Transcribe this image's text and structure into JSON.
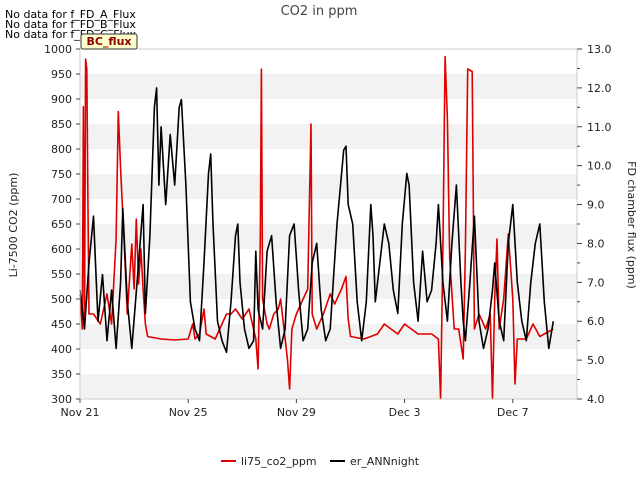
{
  "chart_data": {
    "type": "line",
    "title": "CO2 in ppm",
    "ylabel": "Li-7500 CO2 (ppm)",
    "y2label": "FD chamber flux (ppm)",
    "xlabel": "",
    "xlim": [
      "2021-11-21",
      "2021-12-09 09:00"
    ],
    "ylim": [
      300,
      1000
    ],
    "y2lim": [
      4.0,
      13.0
    ],
    "yticks": [
      "300",
      "350",
      "400",
      "450",
      "500",
      "550",
      "600",
      "650",
      "700",
      "750",
      "800",
      "850",
      "900",
      "950",
      "1000"
    ],
    "y2ticks": [
      "4.0",
      "5.0",
      "6.0",
      "7.0",
      "8.0",
      "9.0",
      "10.0",
      "11.0",
      "12.0",
      "13.0"
    ],
    "xticks": [
      {
        "label": "Nov 21",
        "date": "2021-11-21"
      },
      {
        "label": "Nov 25",
        "date": "2021-11-25"
      },
      {
        "label": "Nov 29",
        "date": "2021-11-29"
      },
      {
        "label": "Dec 3",
        "date": "2021-12-03"
      },
      {
        "label": "Dec 7",
        "date": "2021-12-07"
      }
    ],
    "grid": "horizontal bands",
    "legend_position": "bottom",
    "notes": [
      "No data for f_FD_A_Flux",
      "No data for f_FD_B_Flux",
      "No data for f_FD_C_Flux"
    ],
    "badge": "BC_flux",
    "series": [
      {
        "name": "li75_co2_ppm",
        "axis": "left",
        "color": "#dd0000",
        "points": [
          [
            "2021-11-21 00:00",
            510
          ],
          [
            "2021-11-21 02:00",
            440
          ],
          [
            "2021-11-21 03:00",
            885
          ],
          [
            "2021-11-21 04:00",
            450
          ],
          [
            "2021-11-21 05:00",
            980
          ],
          [
            "2021-11-21 06:00",
            960
          ],
          [
            "2021-11-21 07:00",
            700
          ],
          [
            "2021-11-21 08:00",
            470
          ],
          [
            "2021-11-21 12:00",
            470
          ],
          [
            "2021-11-21 18:00",
            450
          ],
          [
            "2021-11-22 00:00",
            510
          ],
          [
            "2021-11-22 04:00",
            450
          ],
          [
            "2021-11-22 08:00",
            620
          ],
          [
            "2021-11-22 10:00",
            875
          ],
          [
            "2021-11-22 12:00",
            760
          ],
          [
            "2021-11-22 15:00",
            620
          ],
          [
            "2021-11-22 18:00",
            470
          ],
          [
            "2021-11-22 22:00",
            610
          ],
          [
            "2021-11-23 00:00",
            520
          ],
          [
            "2021-11-23 02:00",
            660
          ],
          [
            "2021-11-23 04:00",
            530
          ],
          [
            "2021-11-23 06:00",
            600
          ],
          [
            "2021-11-23 08:00",
            520
          ],
          [
            "2021-11-23 10:00",
            450
          ],
          [
            "2021-11-23 12:00",
            425
          ],
          [
            "2021-11-24 00:00",
            420
          ],
          [
            "2021-11-24 12:00",
            418
          ],
          [
            "2021-11-25 00:00",
            420
          ],
          [
            "2021-11-25 04:00",
            450
          ],
          [
            "2021-11-25 06:00",
            420
          ],
          [
            "2021-11-25 10:00",
            430
          ],
          [
            "2021-11-25 14:00",
            480
          ],
          [
            "2021-11-25 16:00",
            430
          ],
          [
            "2021-11-26 00:00",
            420
          ],
          [
            "2021-11-26 06:00",
            450
          ],
          [
            "2021-11-26 10:00",
            470
          ],
          [
            "2021-11-26 14:00",
            470
          ],
          [
            "2021-11-26 18:00",
            480
          ],
          [
            "2021-11-27 00:00",
            460
          ],
          [
            "2021-11-27 06:00",
            480
          ],
          [
            "2021-11-27 12:00",
            420
          ],
          [
            "2021-11-27 14:00",
            360
          ],
          [
            "2021-11-27 16:00",
            620
          ],
          [
            "2021-11-27 17:00",
            960
          ],
          [
            "2021-11-27 18:00",
            500
          ],
          [
            "2021-11-27 22:00",
            450
          ],
          [
            "2021-11-28 00:00",
            440
          ],
          [
            "2021-11-28 04:00",
            470
          ],
          [
            "2021-11-28 08:00",
            480
          ],
          [
            "2021-11-28 10:00",
            500
          ],
          [
            "2021-11-28 12:00",
            460
          ],
          [
            "2021-11-28 16:00",
            380
          ],
          [
            "2021-11-28 18:00",
            320
          ],
          [
            "2021-11-28 20:00",
            440
          ],
          [
            "2021-11-29 00:00",
            470
          ],
          [
            "2021-11-29 06:00",
            500
          ],
          [
            "2021-11-29 10:00",
            520
          ],
          [
            "2021-11-29 13:00",
            850
          ],
          [
            "2021-11-29 14:00",
            470
          ],
          [
            "2021-11-29 18:00",
            440
          ],
          [
            "2021-11-30 00:00",
            470
          ],
          [
            "2021-11-30 06:00",
            510
          ],
          [
            "2021-11-30 10:00",
            490
          ],
          [
            "2021-11-30 16:00",
            520
          ],
          [
            "2021-11-30 20:00",
            545
          ],
          [
            "2021-11-30 22:00",
            460
          ],
          [
            "2021-12-01 00:00",
            425
          ],
          [
            "2021-12-01 12:00",
            420
          ],
          [
            "2021-12-02 00:00",
            430
          ],
          [
            "2021-12-02 06:00",
            450
          ],
          [
            "2021-12-02 12:00",
            440
          ],
          [
            "2021-12-02 18:00",
            430
          ],
          [
            "2021-12-03 00:00",
            450
          ],
          [
            "2021-12-03 06:00",
            440
          ],
          [
            "2021-12-03 12:00",
            430
          ],
          [
            "2021-12-04 00:00",
            430
          ],
          [
            "2021-12-04 06:00",
            420
          ],
          [
            "2021-12-04 08:00",
            300
          ],
          [
            "2021-12-04 10:00",
            600
          ],
          [
            "2021-12-04 12:00",
            985
          ],
          [
            "2021-12-04 14:00",
            860
          ],
          [
            "2021-12-04 16:00",
            580
          ],
          [
            "2021-12-04 20:00",
            440
          ],
          [
            "2021-12-05 00:00",
            440
          ],
          [
            "2021-12-05 04:00",
            380
          ],
          [
            "2021-12-05 06:00",
            600
          ],
          [
            "2021-12-05 08:00",
            960
          ],
          [
            "2021-12-05 12:00",
            955
          ],
          [
            "2021-12-05 14:00",
            440
          ],
          [
            "2021-12-05 18:00",
            470
          ],
          [
            "2021-12-06 00:00",
            440
          ],
          [
            "2021-12-06 04:00",
            470
          ],
          [
            "2021-12-06 06:00",
            300
          ],
          [
            "2021-12-06 08:00",
            500
          ],
          [
            "2021-12-06 10:00",
            620
          ],
          [
            "2021-12-06 12:00",
            440
          ],
          [
            "2021-12-06 16:00",
            500
          ],
          [
            "2021-12-06 20:00",
            630
          ],
          [
            "2021-12-07 00:00",
            500
          ],
          [
            "2021-12-07 02:00",
            330
          ],
          [
            "2021-12-07 04:00",
            420
          ],
          [
            "2021-12-07 12:00",
            420
          ],
          [
            "2021-12-07 18:00",
            450
          ],
          [
            "2021-12-08 00:00",
            425
          ],
          [
            "2021-12-08 12:00",
            440
          ]
        ]
      },
      {
        "name": "er_ANNnight",
        "axis": "right",
        "color": "#000000",
        "points": [
          [
            "2021-11-21 00:00",
            6.8
          ],
          [
            "2021-11-21 04:00",
            5.8
          ],
          [
            "2021-11-21 08:00",
            7.5
          ],
          [
            "2021-11-21 12:00",
            8.7
          ],
          [
            "2021-11-21 16:00",
            6.0
          ],
          [
            "2021-11-21 20:00",
            7.2
          ],
          [
            "2021-11-22 00:00",
            5.5
          ],
          [
            "2021-11-22 04:00",
            6.8
          ],
          [
            "2021-11-22 08:00",
            5.3
          ],
          [
            "2021-11-22 12:00",
            7.0
          ],
          [
            "2021-11-22 14:00",
            8.9
          ],
          [
            "2021-11-22 18:00",
            6.5
          ],
          [
            "2021-11-22 22:00",
            5.3
          ],
          [
            "2021-11-23 04:00",
            7.5
          ],
          [
            "2021-11-23 08:00",
            9.0
          ],
          [
            "2021-11-23 10:00",
            6.2
          ],
          [
            "2021-11-23 14:00",
            8.2
          ],
          [
            "2021-11-23 18:00",
            11.5
          ],
          [
            "2021-11-23 20:00",
            12.0
          ],
          [
            "2021-11-23 22:00",
            9.5
          ],
          [
            "2021-11-24 00:00",
            11.0
          ],
          [
            "2021-11-24 04:00",
            9.0
          ],
          [
            "2021-11-24 08:00",
            10.8
          ],
          [
            "2021-11-24 12:00",
            9.5
          ],
          [
            "2021-11-24 16:00",
            11.5
          ],
          [
            "2021-11-24 18:00",
            11.7
          ],
          [
            "2021-11-24 22:00",
            9.5
          ],
          [
            "2021-11-25 02:00",
            6.5
          ],
          [
            "2021-11-25 06:00",
            5.8
          ],
          [
            "2021-11-25 10:00",
            5.5
          ],
          [
            "2021-11-25 14:00",
            7.5
          ],
          [
            "2021-11-25 18:00",
            9.8
          ],
          [
            "2021-11-25 20:00",
            10.3
          ],
          [
            "2021-11-25 22:00",
            8.5
          ],
          [
            "2021-11-26 02:00",
            6.0
          ],
          [
            "2021-11-26 06:00",
            5.5
          ],
          [
            "2021-11-26 10:00",
            5.2
          ],
          [
            "2021-11-26 14:00",
            6.5
          ],
          [
            "2021-11-26 18:00",
            8.2
          ],
          [
            "2021-11-26 20:00",
            8.5
          ],
          [
            "2021-11-26 22:00",
            7.0
          ],
          [
            "2021-11-27 02:00",
            5.8
          ],
          [
            "2021-11-27 06:00",
            5.3
          ],
          [
            "2021-11-27 10:00",
            5.5
          ],
          [
            "2021-11-27 12:00",
            7.8
          ],
          [
            "2021-11-27 14:00",
            6.3
          ],
          [
            "2021-11-27 18:00",
            5.8
          ],
          [
            "2021-11-27 22:00",
            7.8
          ],
          [
            "2021-11-28 02:00",
            8.2
          ],
          [
            "2021-11-28 06:00",
            6.5
          ],
          [
            "2021-11-28 10:00",
            5.3
          ],
          [
            "2021-11-28 14:00",
            5.8
          ],
          [
            "2021-11-28 18:00",
            8.2
          ],
          [
            "2021-11-28 22:00",
            8.5
          ],
          [
            "2021-11-29 02:00",
            6.8
          ],
          [
            "2021-11-29 06:00",
            5.5
          ],
          [
            "2021-11-29 10:00",
            5.8
          ],
          [
            "2021-11-29 14:00",
            7.5
          ],
          [
            "2021-11-29 18:00",
            8.0
          ],
          [
            "2021-11-29 22:00",
            6.3
          ],
          [
            "2021-11-30 02:00",
            5.5
          ],
          [
            "2021-11-30 06:00",
            5.8
          ],
          [
            "2021-11-30 12:00",
            8.5
          ],
          [
            "2021-11-30 18:00",
            10.4
          ],
          [
            "2021-11-30 20:00",
            10.5
          ],
          [
            "2021-11-30 22:00",
            9.0
          ],
          [
            "2021-12-01 02:00",
            8.5
          ],
          [
            "2021-12-01 06:00",
            6.5
          ],
          [
            "2021-12-01 10:00",
            5.5
          ],
          [
            "2021-12-01 14:00",
            6.5
          ],
          [
            "2021-12-01 18:00",
            9.0
          ],
          [
            "2021-12-01 20:00",
            8.2
          ],
          [
            "2021-12-01 22:00",
            6.5
          ],
          [
            "2021-12-02 02:00",
            7.5
          ],
          [
            "2021-12-02 06:00",
            8.5
          ],
          [
            "2021-12-02 10:00",
            8.0
          ],
          [
            "2021-12-02 14:00",
            6.8
          ],
          [
            "2021-12-02 18:00",
            6.2
          ],
          [
            "2021-12-02 22:00",
            8.5
          ],
          [
            "2021-12-03 02:00",
            9.8
          ],
          [
            "2021-12-03 04:00",
            9.5
          ],
          [
            "2021-12-03 08:00",
            7.0
          ],
          [
            "2021-12-03 12:00",
            6.0
          ],
          [
            "2021-12-03 16:00",
            7.8
          ],
          [
            "2021-12-03 20:00",
            6.5
          ],
          [
            "2021-12-04 00:00",
            6.8
          ],
          [
            "2021-12-04 04:00",
            8.0
          ],
          [
            "2021-12-04 06:00",
            9.0
          ],
          [
            "2021-12-04 10:00",
            7.0
          ],
          [
            "2021-12-04 14:00",
            6.0
          ],
          [
            "2021-12-04 18:00",
            8.0
          ],
          [
            "2021-12-04 22:00",
            9.5
          ],
          [
            "2021-12-05 02:00",
            7.0
          ],
          [
            "2021-12-05 04:00",
            6.0
          ],
          [
            "2021-12-05 06:00",
            5.5
          ],
          [
            "2021-12-05 10:00",
            7.0
          ],
          [
            "2021-12-05 14:00",
            8.7
          ],
          [
            "2021-12-05 18:00",
            6.0
          ],
          [
            "2021-12-05 22:00",
            5.3
          ],
          [
            "2021-12-06 02:00",
            5.8
          ],
          [
            "2021-12-06 06:00",
            6.8
          ],
          [
            "2021-12-06 08:00",
            7.5
          ],
          [
            "2021-12-06 12:00",
            6.0
          ],
          [
            "2021-12-06 16:00",
            5.5
          ],
          [
            "2021-12-06 20:00",
            8.0
          ],
          [
            "2021-12-07 00:00",
            9.0
          ],
          [
            "2021-12-07 04:00",
            7.0
          ],
          [
            "2021-12-07 08:00",
            6.0
          ],
          [
            "2021-12-07 12:00",
            5.5
          ],
          [
            "2021-12-07 16:00",
            7.0
          ],
          [
            "2021-12-07 20:00",
            8.0
          ],
          [
            "2021-12-08 00:00",
            8.5
          ],
          [
            "2021-12-08 04:00",
            6.5
          ],
          [
            "2021-12-08 08:00",
            5.3
          ],
          [
            "2021-12-08 12:00",
            6.0
          ]
        ]
      }
    ]
  }
}
